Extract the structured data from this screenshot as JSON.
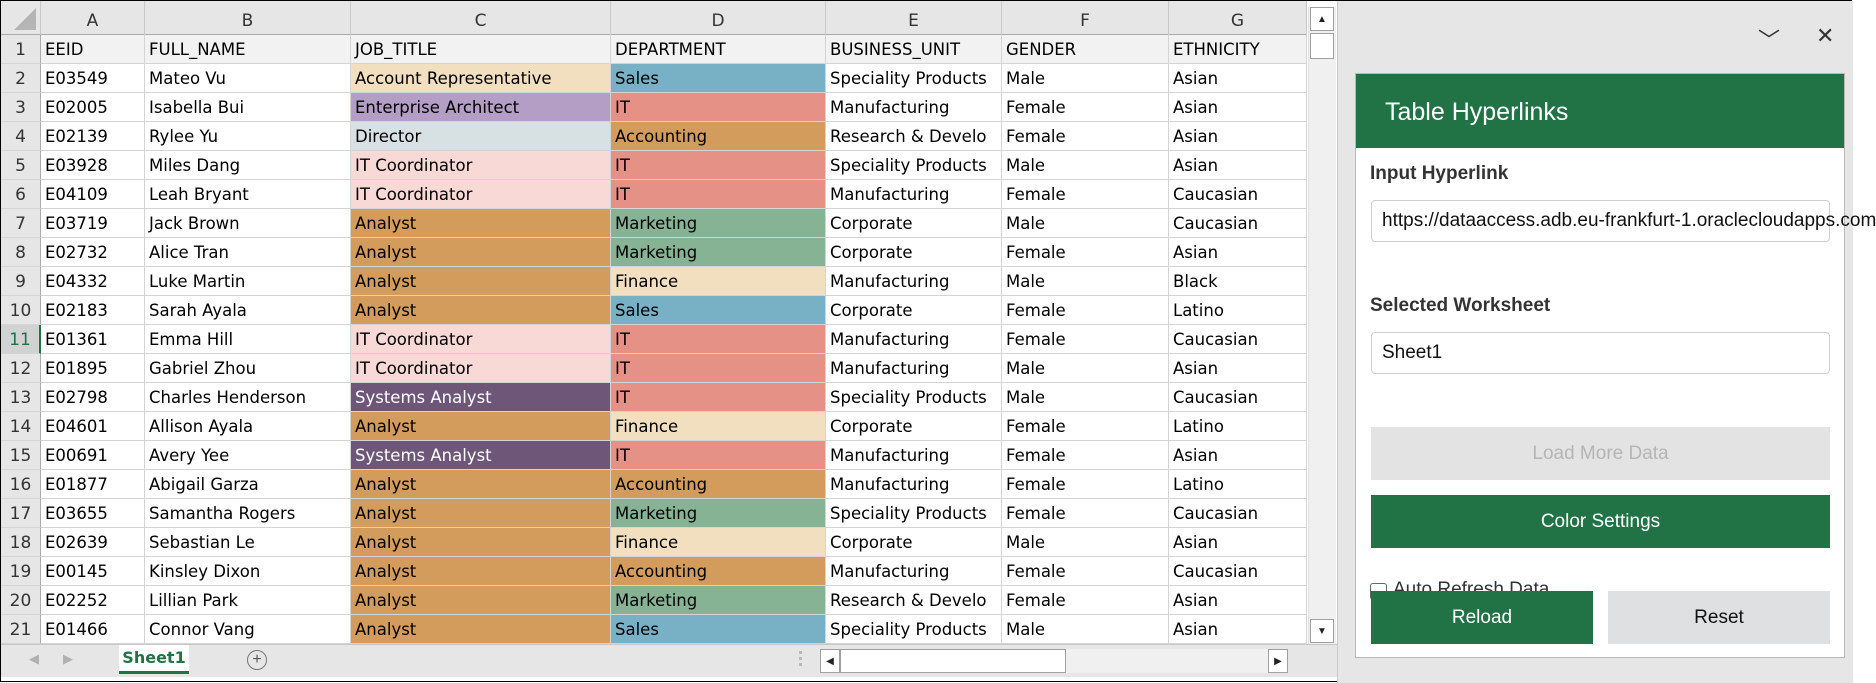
{
  "spreadsheet": {
    "column_letters": [
      "A",
      "B",
      "C",
      "D",
      "E",
      "F",
      "G"
    ],
    "selected_row": 11,
    "headers": [
      "EEID",
      "FULL_NAME",
      "JOB_TITLE",
      "DEPARTMENT",
      "BUSINESS_UNIT",
      "GENDER",
      "ETHNICITY"
    ],
    "rows": [
      {
        "n": "2",
        "eeid": "E03549",
        "name": "Mateo Vu",
        "job": "Account Representative",
        "job_color": "#f1dfc0",
        "job_text": "#000000",
        "dept": "Sales",
        "dept_color": "#78b0c6",
        "bu": "Speciality Products",
        "gender": "Male",
        "ethnicity": "Asian"
      },
      {
        "n": "3",
        "eeid": "E02005",
        "name": "Isabella Bui",
        "job": "Enterprise Architect",
        "job_color": "#b59ec5",
        "job_text": "#000000",
        "dept": "IT",
        "dept_color": "#e59186",
        "bu": "Manufacturing",
        "gender": "Female",
        "ethnicity": "Asian"
      },
      {
        "n": "4",
        "eeid": "E02139",
        "name": "Rylee Yu",
        "job": "Director",
        "job_color": "#d7e1e4",
        "job_text": "#000000",
        "dept": "Accounting",
        "dept_color": "#d39c5d",
        "bu": "Research & Develo",
        "gender": "Female",
        "ethnicity": "Asian"
      },
      {
        "n": "5",
        "eeid": "E03928",
        "name": "Miles Dang",
        "job": "IT Coordinator",
        "job_color": "#f8d9d6",
        "job_text": "#000000",
        "dept": "IT",
        "dept_color": "#e59186",
        "bu": "Speciality Products",
        "gender": "Male",
        "ethnicity": "Asian"
      },
      {
        "n": "6",
        "eeid": "E04109",
        "name": "Leah Bryant",
        "job": "IT Coordinator",
        "job_color": "#f8d9d6",
        "job_text": "#000000",
        "dept": "IT",
        "dept_color": "#e59186",
        "bu": "Manufacturing",
        "gender": "Female",
        "ethnicity": "Caucasian"
      },
      {
        "n": "7",
        "eeid": "E03719",
        "name": "Jack Brown",
        "job": "Analyst",
        "job_color": "#d39c5d",
        "job_text": "#000000",
        "dept": "Marketing",
        "dept_color": "#86b394",
        "bu": "Corporate",
        "gender": "Male",
        "ethnicity": "Caucasian"
      },
      {
        "n": "8",
        "eeid": "E02732",
        "name": "Alice Tran",
        "job": "Analyst",
        "job_color": "#d39c5d",
        "job_text": "#000000",
        "dept": "Marketing",
        "dept_color": "#86b394",
        "bu": "Corporate",
        "gender": "Female",
        "ethnicity": "Asian"
      },
      {
        "n": "9",
        "eeid": "E04332",
        "name": "Luke Martin",
        "job": "Analyst",
        "job_color": "#d39c5d",
        "job_text": "#000000",
        "dept": "Finance",
        "dept_color": "#f1dfc0",
        "bu": "Manufacturing",
        "gender": "Male",
        "ethnicity": "Black"
      },
      {
        "n": "10",
        "eeid": "E02183",
        "name": "Sarah Ayala",
        "job": "Analyst",
        "job_color": "#d39c5d",
        "job_text": "#000000",
        "dept": "Sales",
        "dept_color": "#78b0c6",
        "bu": "Corporate",
        "gender": "Female",
        "ethnicity": "Latino"
      },
      {
        "n": "11",
        "eeid": "E01361",
        "name": "Emma Hill",
        "job": "IT Coordinator",
        "job_color": "#f8d9d6",
        "job_text": "#000000",
        "dept": "IT",
        "dept_color": "#e59186",
        "bu": "Manufacturing",
        "gender": "Female",
        "ethnicity": "Caucasian"
      },
      {
        "n": "12",
        "eeid": "E01895",
        "name": "Gabriel Zhou",
        "job": "IT Coordinator",
        "job_color": "#f8d9d6",
        "job_text": "#000000",
        "dept": "IT",
        "dept_color": "#e59186",
        "bu": "Manufacturing",
        "gender": "Male",
        "ethnicity": "Asian"
      },
      {
        "n": "13",
        "eeid": "E02798",
        "name": "Charles Henderson",
        "job": "Systems Analyst",
        "job_color": "#6e5679",
        "job_text": "#ffffff",
        "dept": "IT",
        "dept_color": "#e59186",
        "bu": "Speciality Products",
        "gender": "Male",
        "ethnicity": "Caucasian"
      },
      {
        "n": "14",
        "eeid": "E04601",
        "name": "Allison Ayala",
        "job": "Analyst",
        "job_color": "#d39c5d",
        "job_text": "#000000",
        "dept": "Finance",
        "dept_color": "#f1dfc0",
        "bu": "Corporate",
        "gender": "Female",
        "ethnicity": "Latino"
      },
      {
        "n": "15",
        "eeid": "E00691",
        "name": "Avery Yee",
        "job": "Systems Analyst",
        "job_color": "#6e5679",
        "job_text": "#ffffff",
        "dept": "IT",
        "dept_color": "#e59186",
        "bu": "Manufacturing",
        "gender": "Female",
        "ethnicity": "Asian"
      },
      {
        "n": "16",
        "eeid": "E01877",
        "name": "Abigail Garza",
        "job": "Analyst",
        "job_color": "#d39c5d",
        "job_text": "#000000",
        "dept": "Accounting",
        "dept_color": "#d39c5d",
        "bu": "Manufacturing",
        "gender": "Female",
        "ethnicity": "Latino"
      },
      {
        "n": "17",
        "eeid": "E03655",
        "name": "Samantha Rogers",
        "job": "Analyst",
        "job_color": "#d39c5d",
        "job_text": "#000000",
        "dept": "Marketing",
        "dept_color": "#86b394",
        "bu": "Speciality Products",
        "gender": "Female",
        "ethnicity": "Caucasian"
      },
      {
        "n": "18",
        "eeid": "E02639",
        "name": "Sebastian Le",
        "job": "Analyst",
        "job_color": "#d39c5d",
        "job_text": "#000000",
        "dept": "Finance",
        "dept_color": "#f1dfc0",
        "bu": "Corporate",
        "gender": "Male",
        "ethnicity": "Asian"
      },
      {
        "n": "19",
        "eeid": "E00145",
        "name": "Kinsley Dixon",
        "job": "Analyst",
        "job_color": "#d39c5d",
        "job_text": "#000000",
        "dept": "Accounting",
        "dept_color": "#d39c5d",
        "bu": "Manufacturing",
        "gender": "Female",
        "ethnicity": "Caucasian"
      },
      {
        "n": "20",
        "eeid": "E02252",
        "name": "Lillian Park",
        "job": "Analyst",
        "job_color": "#d39c5d",
        "job_text": "#000000",
        "dept": "Marketing",
        "dept_color": "#86b394",
        "bu": "Research & Develo",
        "gender": "Female",
        "ethnicity": "Asian"
      },
      {
        "n": "21",
        "eeid": "E01466",
        "name": "Connor Vang",
        "job": "Analyst",
        "job_color": "#d39c5d",
        "job_text": "#000000",
        "dept": "Sales",
        "dept_color": "#78b0c6",
        "bu": "Speciality Products",
        "gender": "Male",
        "ethnicity": "Asian"
      }
    ]
  },
  "sheet_tabs": {
    "active": "Sheet1",
    "add_icon": "+",
    "prev_icon": "◀",
    "next_icon": "▶"
  },
  "scrollbars": {
    "up_icon": "▲",
    "down_icon": "▼",
    "left_icon": "◀",
    "right_icon": "▶"
  },
  "task_pane": {
    "collapse_icon": "﹀",
    "close_icon": "✕",
    "title": "Table Hyperlinks",
    "input_hyperlink_label": "Input Hyperlink",
    "input_hyperlink_value": "https://dataaccess.adb.eu-frankfurt-1.oraclecloudapps.com",
    "selected_worksheet_label": "Selected Worksheet",
    "selected_worksheet_value": "Sheet1",
    "load_more_label": "Load More Data",
    "color_settings_label": "Color Settings",
    "auto_refresh_label": "Auto Refresh Data",
    "auto_refresh_checked": false,
    "reload_label": "Reload",
    "reset_label": "Reset",
    "accent_color": "#217346"
  }
}
